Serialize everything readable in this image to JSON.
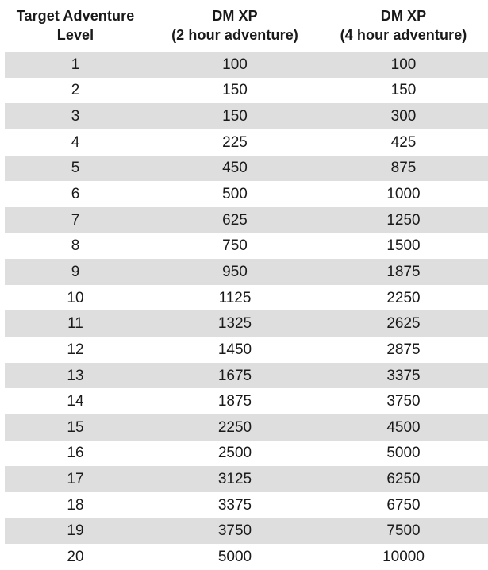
{
  "colors": {
    "stripe": "#dedede",
    "text": "#1a1a1a",
    "background": "#ffffff"
  },
  "table": {
    "columns": [
      {
        "line1": "Target Adventure",
        "line2": "Level"
      },
      {
        "line1": "DM XP",
        "line2": "(2 hour adventure)"
      },
      {
        "line1": "DM XP",
        "line2": "(4 hour adventure)"
      }
    ],
    "rows": [
      {
        "level": "1",
        "xp_2hr": "100",
        "xp_4hr": "100"
      },
      {
        "level": "2",
        "xp_2hr": "150",
        "xp_4hr": "150"
      },
      {
        "level": "3",
        "xp_2hr": "150",
        "xp_4hr": "300"
      },
      {
        "level": "4",
        "xp_2hr": "225",
        "xp_4hr": "425"
      },
      {
        "level": "5",
        "xp_2hr": "450",
        "xp_4hr": "875"
      },
      {
        "level": "6",
        "xp_2hr": "500",
        "xp_4hr": "1000"
      },
      {
        "level": "7",
        "xp_2hr": "625",
        "xp_4hr": "1250"
      },
      {
        "level": "8",
        "xp_2hr": "750",
        "xp_4hr": "1500"
      },
      {
        "level": "9",
        "xp_2hr": "950",
        "xp_4hr": "1875"
      },
      {
        "level": "10",
        "xp_2hr": "1125",
        "xp_4hr": "2250"
      },
      {
        "level": "11",
        "xp_2hr": "1325",
        "xp_4hr": "2625"
      },
      {
        "level": "12",
        "xp_2hr": "1450",
        "xp_4hr": "2875"
      },
      {
        "level": "13",
        "xp_2hr": "1675",
        "xp_4hr": "3375"
      },
      {
        "level": "14",
        "xp_2hr": "1875",
        "xp_4hr": "3750"
      },
      {
        "level": "15",
        "xp_2hr": "2250",
        "xp_4hr": "4500"
      },
      {
        "level": "16",
        "xp_2hr": "2500",
        "xp_4hr": "5000"
      },
      {
        "level": "17",
        "xp_2hr": "3125",
        "xp_4hr": "6250"
      },
      {
        "level": "18",
        "xp_2hr": "3375",
        "xp_4hr": "6750"
      },
      {
        "level": "19",
        "xp_2hr": "3750",
        "xp_4hr": "7500"
      },
      {
        "level": "20",
        "xp_2hr": "5000",
        "xp_4hr": "10000"
      }
    ]
  }
}
